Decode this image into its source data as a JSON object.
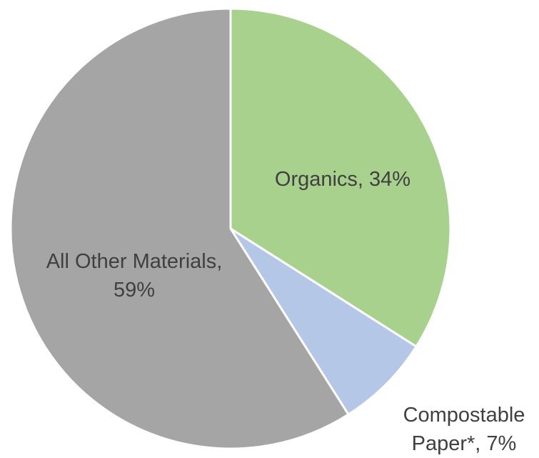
{
  "chart_data": {
    "type": "pie",
    "title": "",
    "categories": [
      "Organics",
      "Compostable Paper*",
      "All Other Materials"
    ],
    "values": [
      34,
      7,
      59
    ],
    "unit": "%",
    "colors": [
      "#a9d18e",
      "#b4c7e7",
      "#a5a5a5"
    ],
    "start_angle_deg": 0,
    "direction": "clockwise",
    "data_labels": [
      {
        "lines": [
          "Organics, 34%"
        ]
      },
      {
        "lines": [
          "Compostable",
          "Paper*, 7%"
        ]
      },
      {
        "lines": [
          "All Other Materials,",
          "59%"
        ]
      }
    ],
    "legend": "none",
    "slice_border_color": "#ffffff"
  }
}
